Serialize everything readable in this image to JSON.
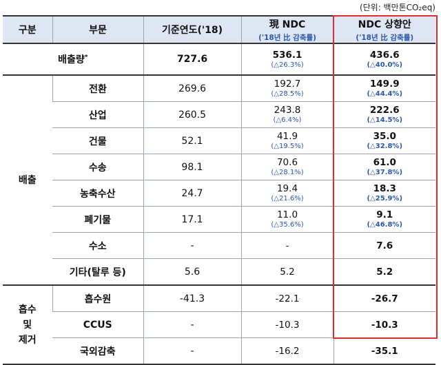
{
  "unit_note": "(단위: 백만톤CO₂eq)",
  "headers": {
    "category": "구분",
    "sector": "부문",
    "base_year": "기준연도('18)",
    "current_ndc": "現 NDC",
    "current_ndc_sub": "('18년 比 감축률)",
    "raised_ndc": "NDC 상향안",
    "raised_ndc_sub": "('18년 比 감축률)"
  },
  "total": {
    "label": "배출량",
    "marker": "*",
    "base": "727.6",
    "current": "536.1",
    "current_pct": "(△26.3%)",
    "raised": "436.6",
    "raised_pct": "(△40.0%)"
  },
  "emission_group": "배출",
  "emission_rows": [
    {
      "sector": "전환",
      "base": "269.6",
      "current": "192.7",
      "current_pct": "(△28.5%)",
      "raised": "149.9",
      "raised_pct": "(△44.4%)"
    },
    {
      "sector": "산업",
      "base": "260.5",
      "current": "243.8",
      "current_pct": "(△6.4%)",
      "raised": "222.6",
      "raised_pct": "(△14.5%)"
    },
    {
      "sector": "건물",
      "base": "52.1",
      "current": "41.9",
      "current_pct": "(△19.5%)",
      "raised": "35.0",
      "raised_pct": "(△32.8%)"
    },
    {
      "sector": "수송",
      "base": "98.1",
      "current": "70.6",
      "current_pct": "(△28.1%)",
      "raised": "61.0",
      "raised_pct": "(△37.8%)"
    },
    {
      "sector": "농축수산",
      "base": "24.7",
      "current": "19.4",
      "current_pct": "(△21.6%)",
      "raised": "18.3",
      "raised_pct": "(△25.9%)"
    },
    {
      "sector": "폐기물",
      "base": "17.1",
      "current": "11.0",
      "current_pct": "(△35.6%)",
      "raised": "9.1",
      "raised_pct": "(△46.8%)"
    },
    {
      "sector": "수소",
      "base": "-",
      "current": "-",
      "current_pct": "",
      "raised": "7.6",
      "raised_pct": ""
    },
    {
      "sector": "기타(탈루 등)",
      "base": "5.6",
      "current": "5.2",
      "current_pct": "",
      "raised": "5.2",
      "raised_pct": ""
    }
  ],
  "absorption_group": "흡수\n및\n제거",
  "absorption_rows": [
    {
      "sector": "흡수원",
      "base": "-41.3",
      "current": "-22.1",
      "current_pct": "",
      "raised": "-26.7",
      "raised_pct": ""
    },
    {
      "sector": "CCUS",
      "base": "-",
      "current": "-10.3",
      "current_pct": "",
      "raised": "-10.3",
      "raised_pct": ""
    },
    {
      "sector": "국외감축",
      "base": "-",
      "current": "-16.2",
      "current_pct": "",
      "raised": "-35.1",
      "raised_pct": ""
    }
  ],
  "highlight_color": "#e02b2b"
}
